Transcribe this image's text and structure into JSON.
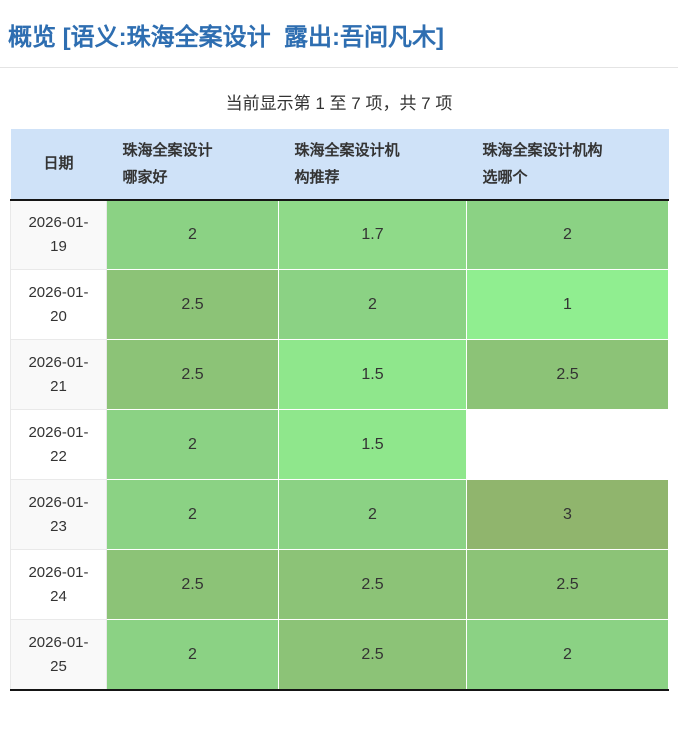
{
  "header": {
    "title": "概览 [语义:珠海全案设计  露出:吾间凡木]"
  },
  "summary": "当前显示第 1 至 7 项，共 7 项",
  "colors": {
    "title_blue": "#2e6eb1",
    "header_bg": "#cfe2f8",
    "stripe_bg": "#f9f9f9",
    "dark_border": "#151515",
    "rank_1": "#90ee90",
    "rank_1_5": "#8fe78c",
    "rank_1_7": "#8fda89",
    "rank_2": "#8bd284",
    "rank_2_5": "#8cc377",
    "rank_3": "#90b56d"
  },
  "table": {
    "columns": [
      "日期",
      "珠海全案设计\n哪家好",
      "珠海全案设计机\n构推荐",
      "珠海全案设计机构\n选哪个"
    ],
    "rows": [
      {
        "date": "2026-01-19",
        "cells": [
          {
            "value": "2",
            "bg": "#8bd284"
          },
          {
            "value": "1.7",
            "bg": "#8fda89"
          },
          {
            "value": "2",
            "bg": "#8bd284"
          }
        ]
      },
      {
        "date": "2026-01-20",
        "cells": [
          {
            "value": "2.5",
            "bg": "#8cc377"
          },
          {
            "value": "2",
            "bg": "#8bd284"
          },
          {
            "value": "1",
            "bg": "#90ee90"
          }
        ]
      },
      {
        "date": "2026-01-21",
        "cells": [
          {
            "value": "2.5",
            "bg": "#8cc377"
          },
          {
            "value": "1.5",
            "bg": "#8fe78c"
          },
          {
            "value": "2.5",
            "bg": "#8cc377"
          }
        ]
      },
      {
        "date": "2026-01-22",
        "cells": [
          {
            "value": "2",
            "bg": "#8bd284"
          },
          {
            "value": "1.5",
            "bg": "#8fe78c"
          },
          {
            "value": "",
            "bg": "#ffffff"
          }
        ]
      },
      {
        "date": "2026-01-23",
        "cells": [
          {
            "value": "2",
            "bg": "#8bd284"
          },
          {
            "value": "2",
            "bg": "#8bd284"
          },
          {
            "value": "3",
            "bg": "#90b56d"
          }
        ]
      },
      {
        "date": "2026-01-24",
        "cells": [
          {
            "value": "2.5",
            "bg": "#8cc377"
          },
          {
            "value": "2.5",
            "bg": "#8cc377"
          },
          {
            "value": "2.5",
            "bg": "#8cc377"
          }
        ]
      },
      {
        "date": "2026-01-25",
        "cells": [
          {
            "value": "2",
            "bg": "#8bd284"
          },
          {
            "value": "2.5",
            "bg": "#8cc377"
          },
          {
            "value": "2",
            "bg": "#8bd284"
          }
        ]
      }
    ]
  }
}
